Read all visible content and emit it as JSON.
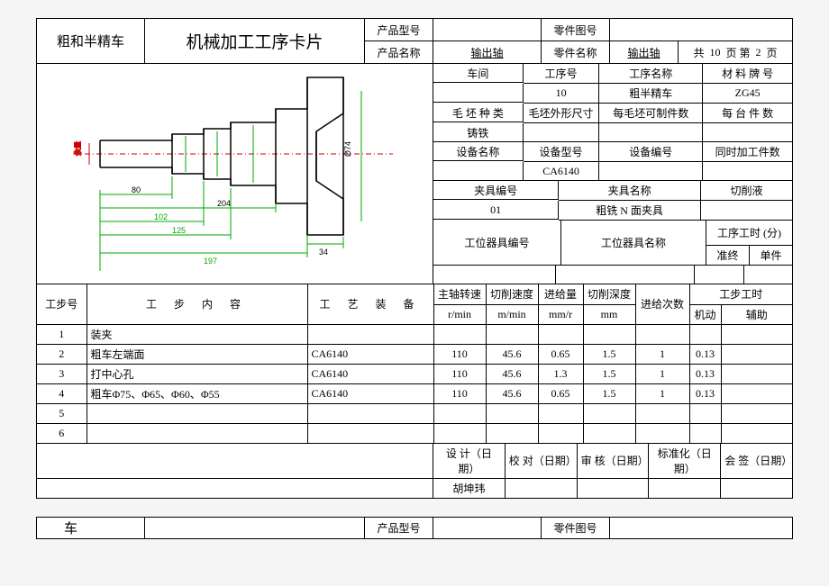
{
  "header": {
    "corner_title": "粗和半精车",
    "main_title": "机械加工工序卡片",
    "product_model_label": "产品型号",
    "product_model": "",
    "part_drawing_label": "零件图号",
    "part_drawing": "",
    "product_name_label": "产品名称",
    "product_name": "输出轴",
    "part_name_label": "零件名称",
    "part_name": "输出轴",
    "page_text_1": "共",
    "page_total": "10",
    "page_text_2": "页   第",
    "page_current": "2",
    "page_text_3": "页"
  },
  "info": {
    "workshop_label": "车间",
    "op_no_label": "工序号",
    "op_no": "10",
    "op_name_label": "工序名称",
    "op_name": "粗半精车",
    "material_label": "材 料 牌  号",
    "material": "ZG45",
    "blank_type_label": "毛 坯 种 类",
    "blank_type": "铸铁",
    "blank_dim_label": "毛坯外形尺寸",
    "blank_qty_label": "每毛坯可制件数",
    "per_unit_label": "每 台 件 数",
    "equip_name_label": "设备名称",
    "equip_model_label": "设备型号",
    "equip_model": "CA6140",
    "equip_no_label": "设备编号",
    "simul_label": "同时加工件数",
    "fixture_no_label": "夹具编号",
    "fixture_no": "01",
    "fixture_name_label": "夹具名称",
    "fixture_name": "粗铣 N 面夹具",
    "coolant_label": "切削液",
    "tool_no_label": "工位器具编号",
    "tool_name_label": "工位器具名称",
    "op_time_label": "工序工时 (分)",
    "prep_label": "准终",
    "unit_label": "单件"
  },
  "drawing": {
    "dims": {
      "d80": "80",
      "d204": "204",
      "d102": "102",
      "d125": "125",
      "d197": "197",
      "d34": "34",
      "dia74": "Ø74"
    },
    "colors": {
      "contour": "#000000",
      "centerline": "#cc0000",
      "dim_green": "#00aa00",
      "bg": "#ffffff"
    },
    "line_width": 1.2
  },
  "steps_header": {
    "step_no": "工步号",
    "content": "工      步      内      容",
    "equip": "工  艺  装  备",
    "spindle": "主轴转速",
    "spindle_unit": "r/min",
    "cut_speed": "切削速度",
    "cut_speed_unit": "m/min",
    "feed": "进给量",
    "feed_unit": "mm/r",
    "depth": "切削深度",
    "depth_unit": "mm",
    "passes": "进给次数",
    "step_time": "工步工时",
    "machine": "机动",
    "aux": "辅助"
  },
  "steps": [
    {
      "no": "1",
      "content": "装夹",
      "equip": "",
      "spindle": "",
      "speed": "",
      "feed": "",
      "depth": "",
      "passes": "",
      "machine": "",
      "aux": ""
    },
    {
      "no": "2",
      "content": "粗车左端面",
      "equip": "CA6140",
      "spindle": "110",
      "speed": "45.6",
      "feed": "0.65",
      "depth": "1.5",
      "passes": "1",
      "machine": "0.13",
      "aux": ""
    },
    {
      "no": "3",
      "content": "打中心孔",
      "equip": "CA6140",
      "spindle": "110",
      "speed": "45.6",
      "feed": "1.3",
      "depth": "1.5",
      "passes": "1",
      "machine": "0.13",
      "aux": ""
    },
    {
      "no": "4",
      "content": "粗车Φ75、Φ65、Φ60、Φ55",
      "equip": "CA6140",
      "spindle": "110",
      "speed": "45.6",
      "feed": "0.65",
      "depth": "1.5",
      "passes": "1",
      "machine": "0.13",
      "aux": ""
    },
    {
      "no": "5",
      "content": "",
      "equip": "",
      "spindle": "",
      "speed": "",
      "feed": "",
      "depth": "",
      "passes": "",
      "machine": "",
      "aux": ""
    },
    {
      "no": "6",
      "content": "",
      "equip": "",
      "spindle": "",
      "speed": "",
      "feed": "",
      "depth": "",
      "passes": "",
      "machine": "",
      "aux": ""
    }
  ],
  "footer": {
    "design": "设 计（日 期）",
    "design_val": "胡坤玮",
    "check": "校 对（日期）",
    "review": "审 核（日期）",
    "std": "标准化（日期）",
    "sign": "会  签（日期）"
  },
  "sheet2": {
    "title": "车",
    "product_model_label": "产品型号",
    "part_drawing_label": "零件图号"
  }
}
